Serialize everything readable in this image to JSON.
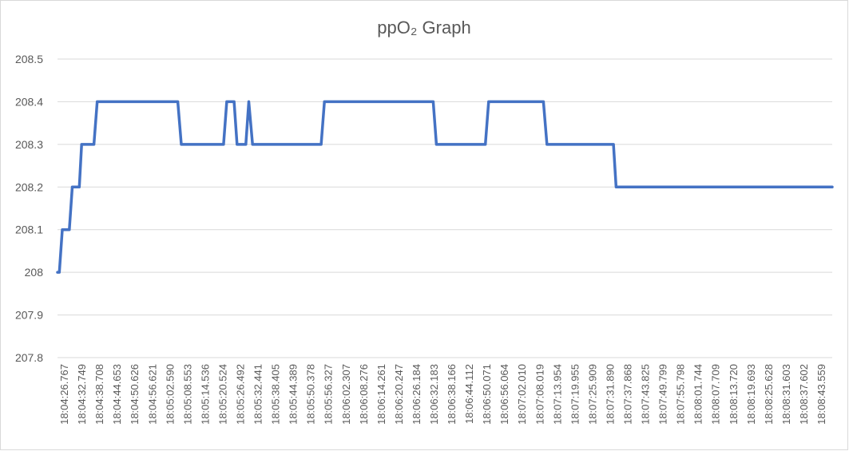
{
  "chart_data": {
    "type": "line",
    "title": "ppO₂ Graph",
    "xlabel": "",
    "ylabel": "",
    "ylim": [
      207.8,
      208.5
    ],
    "y_ticks": [
      208.5,
      208.4,
      208.3,
      208.2,
      208.1,
      208,
      207.9,
      207.8
    ],
    "grid": true,
    "legend": "none",
    "x_tick_labels": [
      "18:04:26.767",
      "18:04:32.749",
      "18:04:38.708",
      "18:04:44.653",
      "18:04:50.626",
      "18:04:56.621",
      "18:05:02.590",
      "18:05:08.553",
      "18:05:14.536",
      "18:05:20.524",
      "18:05:26.492",
      "18:05:32.441",
      "18:05:38.405",
      "18:05:44.389",
      "18:05:50.378",
      "18:05:56.327",
      "18:06:02.307",
      "18:06:08.276",
      "18:06:14.261",
      "18:06:20.247",
      "18:06:26.184",
      "18:06:32.183",
      "18:06:38.166",
      "18:06:44.112",
      "18:06:50.071",
      "18:06:56.064",
      "18:07:02.010",
      "18:07:08.019",
      "18:07:13.954",
      "18:07:19.955",
      "18:07:25.909",
      "18:07:31.890",
      "18:07:37.868",
      "18:07:43.825",
      "18:07:49.799",
      "18:07:55.798",
      "18:08:01.744",
      "18:08:07.709",
      "18:08:13.720",
      "18:08:19.693",
      "18:08:25.628",
      "18:08:31.603",
      "18:08:37.602",
      "18:08:43.559"
    ],
    "x_range": [
      "18:04:26.767",
      "18:08:51.000"
    ],
    "series": [
      {
        "color": "#4472c4",
        "points": [
          {
            "x": "18:04:26.767",
            "y": 208.0
          },
          {
            "x": "18:04:27.400",
            "y": 208.0
          },
          {
            "x": "18:04:28.400",
            "y": 208.1
          },
          {
            "x": "18:04:30.800",
            "y": 208.1
          },
          {
            "x": "18:04:31.800",
            "y": 208.2
          },
          {
            "x": "18:04:34.200",
            "y": 208.2
          },
          {
            "x": "18:04:35.000",
            "y": 208.3
          },
          {
            "x": "18:04:39.200",
            "y": 208.3
          },
          {
            "x": "18:04:40.300",
            "y": 208.4
          },
          {
            "x": "18:05:07.800",
            "y": 208.4
          },
          {
            "x": "18:05:09.000",
            "y": 208.3
          },
          {
            "x": "18:05:23.400",
            "y": 208.3
          },
          {
            "x": "18:05:24.500",
            "y": 208.4
          },
          {
            "x": "18:05:27.000",
            "y": 208.4
          },
          {
            "x": "18:05:28.000",
            "y": 208.3
          },
          {
            "x": "18:05:31.000",
            "y": 208.3
          },
          {
            "x": "18:05:32.000",
            "y": 208.4
          },
          {
            "x": "18:05:33.300",
            "y": 208.3
          },
          {
            "x": "18:05:56.700",
            "y": 208.3
          },
          {
            "x": "18:05:57.800",
            "y": 208.4
          },
          {
            "x": "18:06:34.900",
            "y": 208.4
          },
          {
            "x": "18:06:36.000",
            "y": 208.3
          },
          {
            "x": "18:06:52.700",
            "y": 208.3
          },
          {
            "x": "18:06:53.800",
            "y": 208.4
          },
          {
            "x": "18:07:12.500",
            "y": 208.4
          },
          {
            "x": "18:07:13.700",
            "y": 208.3
          },
          {
            "x": "18:07:36.400",
            "y": 208.3
          },
          {
            "x": "18:07:37.300",
            "y": 208.2
          },
          {
            "x": "18:08:51.000",
            "y": 208.2
          }
        ]
      }
    ]
  }
}
